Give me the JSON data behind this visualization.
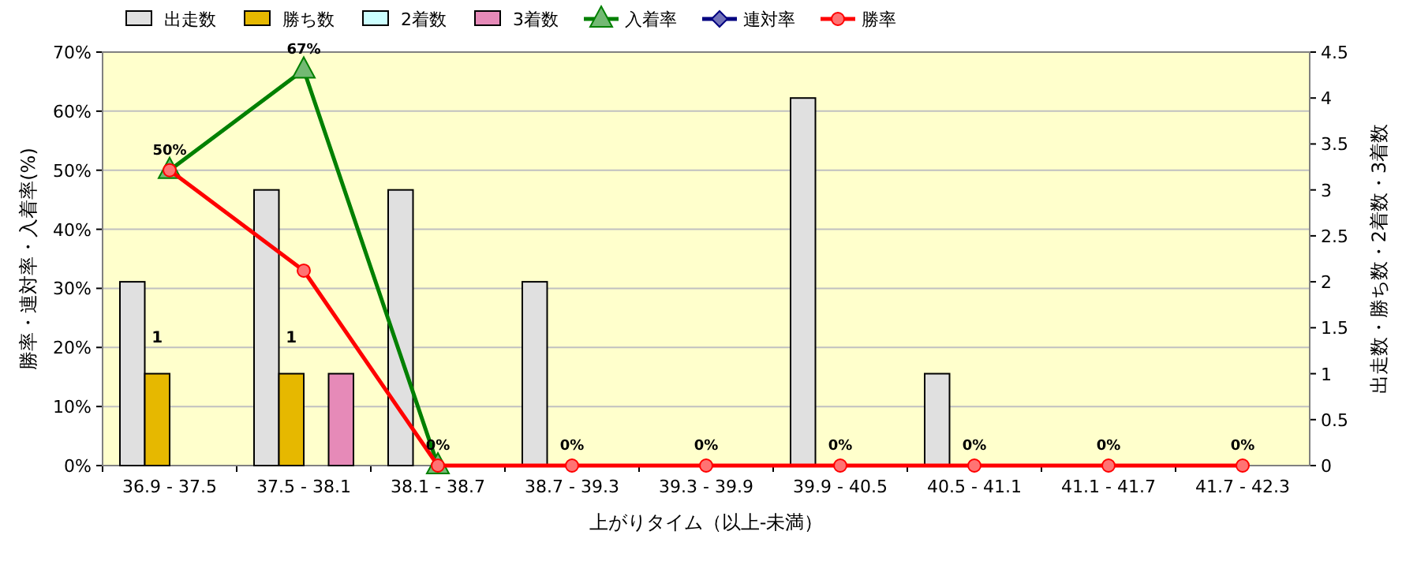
{
  "chart_data": {
    "type": "bar",
    "xlabel": "上がりタイム（以上-未満）",
    "ylabel": "勝率・連対率・入着率(%)",
    "y2label": "出走数・勝ち数・2着数・3着数",
    "categories": [
      "36.9 - 37.5",
      "37.5 - 38.1",
      "38.1 - 38.7",
      "38.7 - 39.3",
      "39.3 - 39.9",
      "39.9 - 40.5",
      "40.5 - 41.1",
      "41.1 - 41.7",
      "41.7 - 42.3"
    ],
    "series": [
      {
        "name": "出走数",
        "axis": "y2",
        "color": "#e0e0e0",
        "values": [
          2,
          3,
          3,
          2,
          0,
          4,
          1,
          0,
          0
        ]
      },
      {
        "name": "勝ち数",
        "axis": "y2",
        "color": "#e6b800",
        "values": [
          1,
          1,
          0,
          0,
          0,
          0,
          0,
          0,
          0
        ],
        "value_labels": [
          "1",
          "1",
          null,
          null,
          null,
          null,
          null,
          null,
          null
        ]
      },
      {
        "name": "2着数",
        "axis": "y2",
        "color": "#ccffff",
        "values": [
          0,
          0,
          0,
          0,
          0,
          0,
          0,
          0,
          0
        ]
      },
      {
        "name": "3着数",
        "axis": "y2",
        "color": "#e68ab8",
        "values": [
          0,
          1,
          0,
          0,
          0,
          0,
          0,
          0,
          0
        ]
      },
      {
        "name": "入着率",
        "type": "line",
        "marker": "triangle",
        "color": "#008000",
        "values": [
          50,
          67,
          0,
          null,
          null,
          null,
          null,
          null,
          null
        ],
        "value_labels": [
          null,
          "67%",
          null,
          null,
          null,
          null,
          null,
          null,
          null
        ]
      },
      {
        "name": "連対率",
        "type": "line",
        "marker": "diamond",
        "color": "#000080",
        "values": [
          null,
          null,
          null,
          null,
          null,
          null,
          null,
          null,
          null
        ]
      },
      {
        "name": "勝率",
        "type": "line",
        "marker": "circle",
        "color": "#ff0000",
        "values": [
          50,
          33,
          0,
          0,
          0,
          0,
          0,
          0,
          0
        ],
        "value_labels": [
          "50%",
          null,
          "0%",
          "0%",
          "0%",
          "0%",
          "0%",
          "0%",
          "0%"
        ]
      }
    ],
    "ylim": [
      0,
      70
    ],
    "yticks": [
      {
        "value": 0,
        "label": "0%"
      },
      {
        "value": 10,
        "label": "10%"
      },
      {
        "value": 20,
        "label": "20%"
      },
      {
        "value": 30,
        "label": "30%"
      },
      {
        "value": 40,
        "label": "40%"
      },
      {
        "value": 50,
        "label": "50%"
      },
      {
        "value": 60,
        "label": "60%"
      },
      {
        "value": 70,
        "label": "70%"
      }
    ],
    "y2lim": [
      0,
      4.5
    ],
    "y2ticks": [
      0,
      0.5,
      1,
      1.5,
      2,
      2.5,
      3,
      3.5,
      4,
      4.5
    ],
    "grid": "y",
    "legend": "top"
  }
}
